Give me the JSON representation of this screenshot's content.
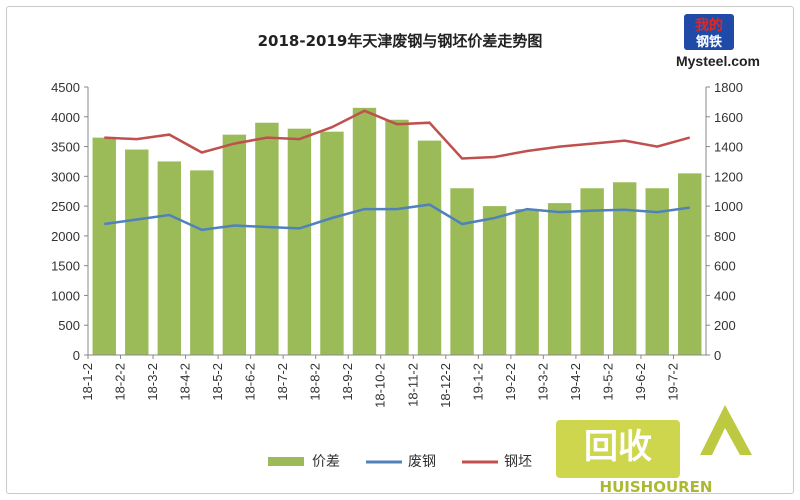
{
  "chart_data": {
    "type": "bar",
    "title": "2018-2019年天津废钢与钢坯价差走势图",
    "xlabel": "",
    "ylabel": "",
    "x_tick_labels": [
      "18-1-2",
      "18-2-2",
      "18-3-2",
      "18-4-2",
      "18-5-2",
      "18-6-2",
      "18-7-2",
      "18-8-2",
      "18-9-2",
      "18-10-2",
      "18-11-2",
      "18-12-2",
      "19-1-2",
      "19-2-2",
      "19-3-2",
      "19-4-2",
      "19-5-2",
      "19-6-2",
      "19-7-2"
    ],
    "y_left": {
      "min": 0,
      "max": 4500,
      "step": 500,
      "ticks": [
        "0",
        "500",
        "1000",
        "1500",
        "2000",
        "2500",
        "3000",
        "3500",
        "4000",
        "4500"
      ]
    },
    "y_right": {
      "min": 0,
      "max": 1800,
      "step": 200,
      "ticks": [
        "0",
        "200",
        "400",
        "600",
        "800",
        "1000",
        "1200",
        "1400",
        "1600",
        "1800"
      ]
    },
    "grid": false,
    "legend_position": "bottom",
    "colors": {
      "price_diff": "#9bbb59",
      "scrap": "#4f81bd",
      "billet": "#c0504d"
    },
    "series": [
      {
        "name": "价差",
        "kind": "bar",
        "axis": "left",
        "month_values": [
          3650,
          3450,
          3250,
          3100,
          3700,
          3900,
          3800,
          3750,
          4150,
          3950,
          3600,
          2800,
          2500,
          2450,
          2550,
          2800,
          2900,
          2800,
          3050
        ]
      },
      {
        "name": "废钢",
        "kind": "line",
        "axis": "right",
        "month_values": [
          880,
          910,
          940,
          840,
          870,
          860,
          850,
          920,
          980,
          980,
          1010,
          880,
          920,
          980,
          960,
          970,
          975,
          960,
          990
        ]
      },
      {
        "name": "钢坯",
        "kind": "line",
        "axis": "right",
        "month_values": [
          1460,
          1450,
          1480,
          1360,
          1420,
          1460,
          1450,
          1530,
          1640,
          1550,
          1560,
          1320,
          1330,
          1370,
          1400,
          1420,
          1440,
          1400,
          1460
        ]
      }
    ]
  },
  "logo": {
    "top_chars": "我的",
    "bottom_chars": "钢铁",
    "brand": "Mysteel.com"
  },
  "watermark": {
    "cn": "回收",
    "en": "HUISHOUREN"
  }
}
